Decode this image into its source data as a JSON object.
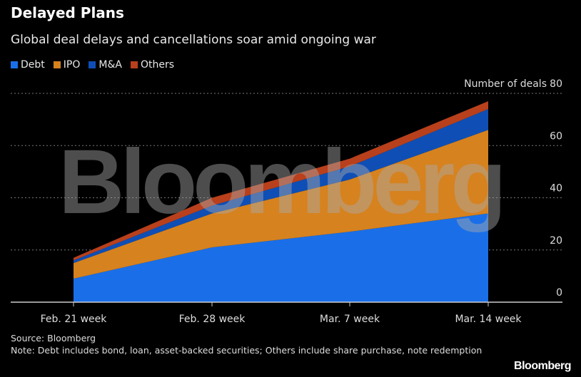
{
  "chart_data": {
    "type": "area",
    "stacked": true,
    "title": "Delayed Plans",
    "subtitle": "Global deal delays and cancellations soar amid ongoing war",
    "ylabel": "Number of deals",
    "categories": [
      "Feb. 21 week",
      "Feb. 28 week",
      "Mar. 7 week",
      "Mar. 14 week"
    ],
    "series": [
      {
        "name": "Debt",
        "color": "#1a6fe8",
        "values": [
          9,
          21,
          27,
          34
        ]
      },
      {
        "name": "IPO",
        "color": "#d6821f",
        "values": [
          6,
          13,
          20,
          32
        ]
      },
      {
        "name": "M&A",
        "color": "#0f4fb5",
        "values": [
          1,
          3,
          5,
          8
        ]
      },
      {
        "name": "Others",
        "color": "#b8401c",
        "values": [
          1,
          3,
          3,
          3
        ]
      }
    ],
    "ylim": [
      0,
      80
    ],
    "yticks": [
      0,
      20,
      40,
      60,
      80
    ],
    "grid": true,
    "legend": "top-left",
    "source": "Source: Bloomberg",
    "note": "Note: Debt includes bond, loan, asset-backed securities; Others include share purchase, note redemption"
  },
  "watermark": "Bloomberg",
  "logo": "Bloomberg"
}
